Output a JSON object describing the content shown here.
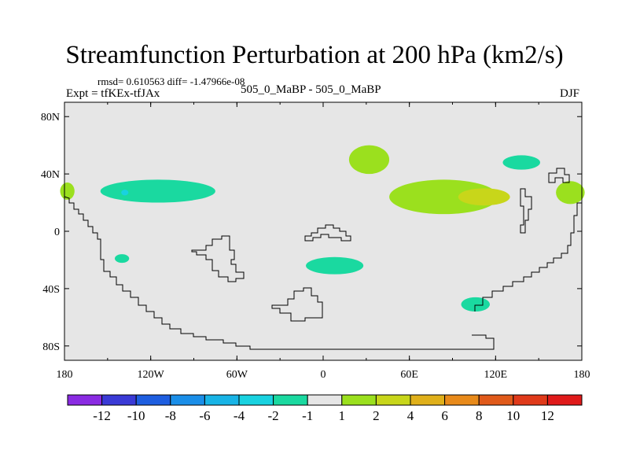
{
  "title": "Streamfunction Perturbation at 200 hPa (km2/s)",
  "stats_line": "rmsd= 0.610563 diff= -1.47966e-08",
  "expt_line": "Expt = tfKEx-tfJAx",
  "center_label": "505_0_MaBP - 505_0_MaBP",
  "season": "DJF",
  "map": {
    "background_color": "#e6e6e6",
    "coastline_color": "#000000",
    "lon_range": [
      -180,
      180
    ],
    "lat_range": [
      -90,
      90
    ],
    "x_ticks": [
      {
        "label": "180"
      },
      {
        "label": "120W"
      },
      {
        "label": "60W"
      },
      {
        "label": "0"
      },
      {
        "label": "60E"
      },
      {
        "label": "120E"
      },
      {
        "label": "180"
      }
    ],
    "y_ticks": [
      {
        "label": "80N"
      },
      {
        "label": "40N"
      },
      {
        "label": "0"
      },
      {
        "label": "40S"
      },
      {
        "label": "80S"
      }
    ],
    "anomalies": [
      {
        "lon": -115,
        "lat": 28,
        "rx": 40,
        "ry": 8,
        "level": -1
      },
      {
        "lon": -138,
        "lat": 27,
        "rx": 2.5,
        "ry": 2,
        "level": -2
      },
      {
        "lon": -140,
        "lat": -19,
        "rx": 5,
        "ry": 3,
        "level": -1
      },
      {
        "lon": 32,
        "lat": 50,
        "rx": 14,
        "ry": 10,
        "level": 1
      },
      {
        "lon": 84,
        "lat": 24,
        "rx": 38,
        "ry": 12,
        "level": 1
      },
      {
        "lon": 112,
        "lat": 24,
        "rx": 18,
        "ry": 6,
        "level": 2
      },
      {
        "lon": 138,
        "lat": 48,
        "rx": 13,
        "ry": 5,
        "level": -1
      },
      {
        "lon": 172,
        "lat": 27,
        "rx": 10,
        "ry": 8,
        "level": 1
      },
      {
        "lon": -178,
        "lat": 28,
        "rx": 5,
        "ry": 6,
        "level": 1
      },
      {
        "lon": 8,
        "lat": -24,
        "rx": 20,
        "ry": 6,
        "level": -1
      },
      {
        "lon": 106,
        "lat": -51,
        "rx": 10,
        "ry": 5,
        "level": -1
      }
    ]
  },
  "colorbar": {
    "colors": [
      "#8a2be2",
      "#3a3ad6",
      "#1e5ee0",
      "#1a8ee8",
      "#18b4e6",
      "#19d2e0",
      "#1ad9a0",
      "#e6e6e6",
      "#9be01e",
      "#c8d61a",
      "#e0b01a",
      "#e88a1a",
      "#e05a1a",
      "#e03a1a",
      "#e01a1a"
    ],
    "labels": [
      "-12",
      "-10",
      "-8",
      "-6",
      "-4",
      "-2",
      "-1",
      "1",
      "2",
      "4",
      "6",
      "8",
      "10",
      "12"
    ]
  },
  "legend_levels": {
    "-2": "#19d2e0",
    "-1": "#1ad9a0",
    "1": "#9be01e",
    "2": "#c8d61a"
  }
}
